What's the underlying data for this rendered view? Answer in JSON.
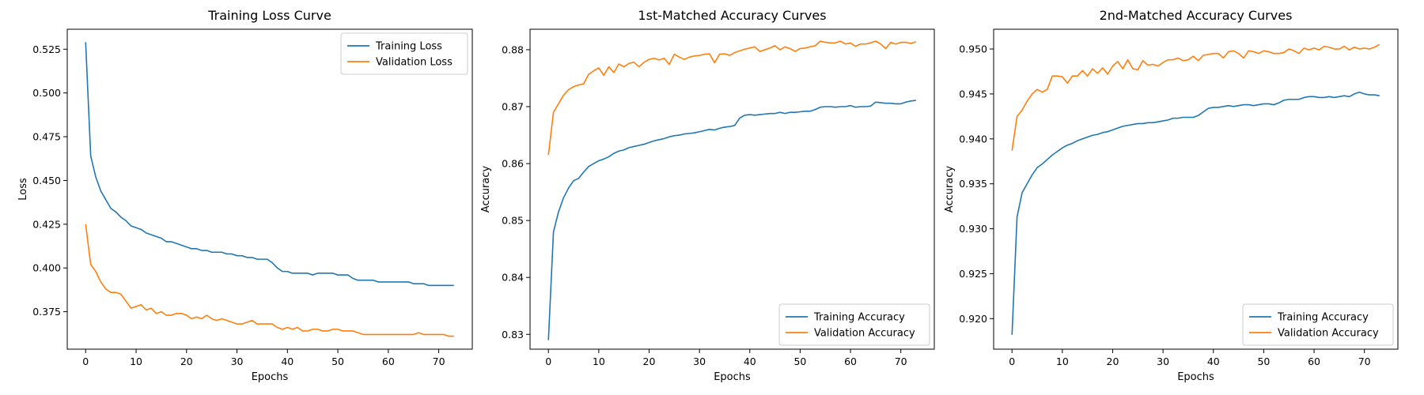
{
  "colors": {
    "training": "#1f77b4",
    "validation": "#ff7f0e"
  },
  "chart_data": [
    {
      "type": "line",
      "title": "Training Loss Curve",
      "xlabel": "Epochs",
      "ylabel": "Loss",
      "xlim": [
        -3.65,
        76.65
      ],
      "ylim": [
        0.3536,
        0.5364
      ],
      "xticks": [
        0,
        10,
        20,
        30,
        40,
        50,
        60,
        70
      ],
      "yticks": [
        0.375,
        0.4,
        0.425,
        0.45,
        0.475,
        0.5,
        0.525
      ],
      "ytick_labels": [
        "0.375",
        "0.400",
        "0.425",
        "0.450",
        "0.475",
        "0.500",
        "0.525"
      ],
      "legend_position": "upper right",
      "grid": false,
      "series": [
        {
          "name": "Training Loss",
          "color": "#1f77b4",
          "values": [
            0.529,
            0.464,
            0.452,
            0.444,
            0.439,
            0.434,
            0.432,
            0.429,
            0.427,
            0.424,
            0.423,
            0.422,
            0.42,
            0.419,
            0.418,
            0.417,
            0.415,
            0.415,
            0.414,
            0.413,
            0.412,
            0.411,
            0.411,
            0.41,
            0.41,
            0.409,
            0.409,
            0.409,
            0.408,
            0.408,
            0.407,
            0.407,
            0.406,
            0.406,
            0.405,
            0.405,
            0.405,
            0.403,
            0.4,
            0.398,
            0.398,
            0.397,
            0.397,
            0.397,
            0.397,
            0.396,
            0.397,
            0.397,
            0.397,
            0.397,
            0.396,
            0.396,
            0.396,
            0.394,
            0.393,
            0.393,
            0.393,
            0.393,
            0.392,
            0.392,
            0.392,
            0.392,
            0.392,
            0.392,
            0.392,
            0.391,
            0.391,
            0.391,
            0.39,
            0.39,
            0.39,
            0.39,
            0.39,
            0.39
          ]
        },
        {
          "name": "Validation Loss",
          "color": "#ff7f0e",
          "values": [
            0.425,
            0.402,
            0.398,
            0.392,
            0.388,
            0.386,
            0.386,
            0.385,
            0.381,
            0.377,
            0.378,
            0.379,
            0.376,
            0.377,
            0.374,
            0.375,
            0.373,
            0.373,
            0.374,
            0.374,
            0.373,
            0.371,
            0.372,
            0.371,
            0.373,
            0.371,
            0.37,
            0.371,
            0.37,
            0.369,
            0.368,
            0.368,
            0.369,
            0.37,
            0.368,
            0.368,
            0.368,
            0.368,
            0.366,
            0.365,
            0.366,
            0.365,
            0.366,
            0.364,
            0.364,
            0.365,
            0.365,
            0.364,
            0.364,
            0.365,
            0.365,
            0.364,
            0.364,
            0.364,
            0.363,
            0.362,
            0.362,
            0.362,
            0.362,
            0.362,
            0.362,
            0.362,
            0.362,
            0.362,
            0.362,
            0.362,
            0.363,
            0.362,
            0.362,
            0.362,
            0.362,
            0.362,
            0.361,
            0.361
          ]
        }
      ]
    },
    {
      "type": "line",
      "title": "1st-Matched Accuracy Curves",
      "xlabel": "Epochs",
      "ylabel": "Accuracy",
      "xlim": [
        -3.65,
        76.65
      ],
      "ylim": [
        0.8274,
        0.8836
      ],
      "xticks": [
        0,
        10,
        20,
        30,
        40,
        50,
        60,
        70
      ],
      "yticks": [
        0.83,
        0.84,
        0.85,
        0.86,
        0.87,
        0.88
      ],
      "ytick_labels": [
        "0.83",
        "0.84",
        "0.85",
        "0.86",
        "0.87",
        "0.88"
      ],
      "legend_position": "lower right",
      "grid": false,
      "series": [
        {
          "name": "Training Accuracy",
          "color": "#1f77b4",
          "values": [
            0.829,
            0.848,
            0.8515,
            0.854,
            0.8557,
            0.857,
            0.8574,
            0.8585,
            0.8595,
            0.86,
            0.8605,
            0.8608,
            0.8612,
            0.8618,
            0.8622,
            0.8624,
            0.8628,
            0.863,
            0.8632,
            0.8634,
            0.8637,
            0.864,
            0.8642,
            0.8644,
            0.8647,
            0.8649,
            0.865,
            0.8652,
            0.8653,
            0.8654,
            0.8656,
            0.8658,
            0.866,
            0.8659,
            0.8662,
            0.8664,
            0.8665,
            0.8667,
            0.868,
            0.8685,
            0.8686,
            0.8685,
            0.8686,
            0.8687,
            0.8688,
            0.8688,
            0.869,
            0.8688,
            0.869,
            0.869,
            0.8691,
            0.8692,
            0.8692,
            0.8695,
            0.8699,
            0.87,
            0.87,
            0.8699,
            0.87,
            0.87,
            0.8702,
            0.8699,
            0.87,
            0.87,
            0.8701,
            0.8708,
            0.8707,
            0.8706,
            0.8706,
            0.8705,
            0.8705,
            0.8708,
            0.871,
            0.8711
          ]
        },
        {
          "name": "Validation Accuracy",
          "color": "#ff7f0e",
          "values": [
            0.8615,
            0.869,
            0.8705,
            0.872,
            0.873,
            0.8735,
            0.8738,
            0.874,
            0.8757,
            0.8763,
            0.8768,
            0.8755,
            0.877,
            0.876,
            0.8775,
            0.877,
            0.8776,
            0.8778,
            0.877,
            0.8778,
            0.8783,
            0.8785,
            0.8782,
            0.8785,
            0.8774,
            0.8792,
            0.8787,
            0.8783,
            0.8787,
            0.8789,
            0.879,
            0.8792,
            0.8793,
            0.8777,
            0.8792,
            0.8793,
            0.879,
            0.8795,
            0.8798,
            0.8801,
            0.8803,
            0.8805,
            0.8797,
            0.88,
            0.8803,
            0.8807,
            0.88,
            0.8805,
            0.8802,
            0.8797,
            0.8802,
            0.8803,
            0.8805,
            0.8807,
            0.8815,
            0.8813,
            0.8812,
            0.8812,
            0.8815,
            0.881,
            0.8812,
            0.8806,
            0.881,
            0.881,
            0.8812,
            0.8815,
            0.881,
            0.8802,
            0.8813,
            0.881,
            0.8813,
            0.8813,
            0.8811,
            0.8814
          ]
        }
      ]
    },
    {
      "type": "line",
      "title": "2nd-Matched Accuracy Curves",
      "xlabel": "Epochs",
      "ylabel": "Accuracy",
      "xlim": [
        -3.65,
        76.65
      ],
      "ylim": [
        0.9166,
        0.9522
      ],
      "xticks": [
        0,
        10,
        20,
        30,
        40,
        50,
        60,
        70
      ],
      "yticks": [
        0.92,
        0.925,
        0.93,
        0.935,
        0.94,
        0.945,
        0.95
      ],
      "ytick_labels": [
        "0.920",
        "0.925",
        "0.930",
        "0.935",
        "0.940",
        "0.945",
        "0.950"
      ],
      "legend_position": "lower right",
      "grid": false,
      "series": [
        {
          "name": "Training Accuracy",
          "color": "#1f77b4",
          "values": [
            0.9182,
            0.9313,
            0.934,
            0.935,
            0.936,
            0.9368,
            0.9372,
            0.9377,
            0.9382,
            0.9386,
            0.939,
            0.9393,
            0.9395,
            0.9398,
            0.94,
            0.9402,
            0.9404,
            0.9405,
            0.9407,
            0.9408,
            0.941,
            0.9412,
            0.9414,
            0.9415,
            0.9416,
            0.9417,
            0.9417,
            0.9418,
            0.9418,
            0.9419,
            0.942,
            0.9421,
            0.9423,
            0.9423,
            0.9424,
            0.9424,
            0.9424,
            0.9426,
            0.943,
            0.9434,
            0.9435,
            0.9435,
            0.9436,
            0.9437,
            0.9436,
            0.9437,
            0.9438,
            0.9438,
            0.9437,
            0.9438,
            0.9439,
            0.9439,
            0.9438,
            0.944,
            0.9443,
            0.9444,
            0.9444,
            0.9444,
            0.9446,
            0.9447,
            0.9447,
            0.9446,
            0.9446,
            0.9447,
            0.9446,
            0.9447,
            0.9448,
            0.9447,
            0.945,
            0.9452,
            0.945,
            0.9449,
            0.9449,
            0.9448
          ]
        },
        {
          "name": "Validation Accuracy",
          "color": "#ff7f0e",
          "values": [
            0.9387,
            0.9425,
            0.9432,
            0.9442,
            0.945,
            0.9455,
            0.9452,
            0.9455,
            0.947,
            0.947,
            0.9469,
            0.9462,
            0.947,
            0.947,
            0.9476,
            0.947,
            0.9478,
            0.9473,
            0.9479,
            0.9472,
            0.9481,
            0.9486,
            0.9478,
            0.9488,
            0.9478,
            0.9477,
            0.9487,
            0.9482,
            0.9483,
            0.9481,
            0.9485,
            0.9488,
            0.9488,
            0.949,
            0.9487,
            0.9488,
            0.9492,
            0.9487,
            0.9493,
            0.9494,
            0.9495,
            0.9495,
            0.949,
            0.9497,
            0.9498,
            0.9495,
            0.949,
            0.9498,
            0.9497,
            0.9495,
            0.9498,
            0.9497,
            0.9495,
            0.9495,
            0.9496,
            0.95,
            0.9498,
            0.9495,
            0.9501,
            0.9499,
            0.9501,
            0.9499,
            0.9503,
            0.9502,
            0.95,
            0.95,
            0.9503,
            0.9499,
            0.9502,
            0.95,
            0.9501,
            0.95,
            0.9502,
            0.9505
          ]
        }
      ]
    }
  ]
}
